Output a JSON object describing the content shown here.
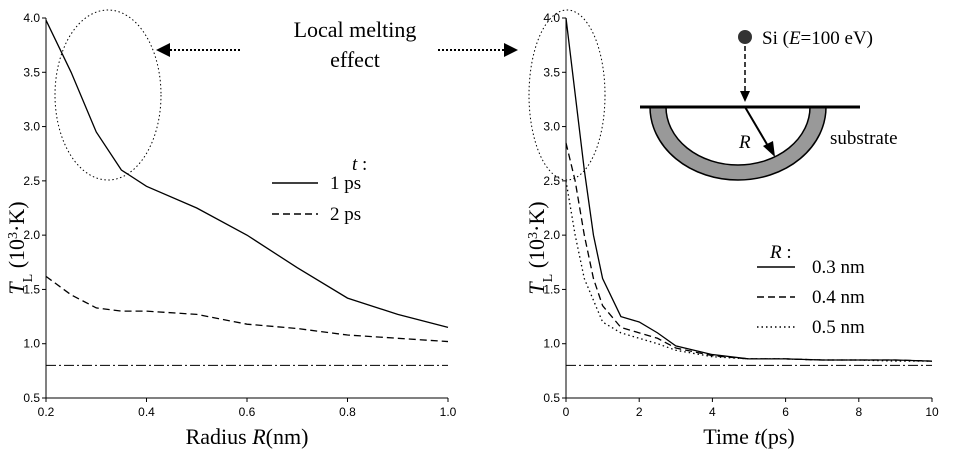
{
  "annotation": {
    "lines": [
      "Local melting",
      "effect"
    ]
  },
  "chart_data": [
    {
      "type": "line",
      "x_label": [
        "Radius ",
        "R",
        "(nm)"
      ],
      "y_label": [
        "T",
        "L",
        " (10",
        "3",
        "·K)"
      ],
      "x": [
        0.2,
        0.25,
        0.3,
        0.35,
        0.4,
        0.5,
        0.6,
        0.7,
        0.8,
        0.9,
        1.0
      ],
      "xlim": [
        0.2,
        1.0
      ],
      "xticks": [
        0.2,
        0.4,
        0.6,
        0.8,
        {
          "value": 1,
          "label": "1.0"
        }
      ],
      "ylim": [
        0.5,
        4
      ],
      "yticks": [
        0.5,
        {
          "value": 1,
          "label": "1.0"
        },
        1.5,
        {
          "value": 2,
          "label": "2.0"
        },
        2.5,
        {
          "value": 3,
          "label": "3.0"
        },
        3.5,
        {
          "value": 4,
          "label": "4.0"
        }
      ],
      "legend_title": [
        "t",
        " :"
      ],
      "series": [
        {
          "name": "1 ps",
          "color": "#000000",
          "dash": "solid",
          "values": [
            3.98,
            3.5,
            2.95,
            2.6,
            2.45,
            2.25,
            2.0,
            1.7,
            1.42,
            1.27,
            1.15
          ]
        },
        {
          "name": "2 ps",
          "color": "#000000",
          "dash": "dashed",
          "values": [
            1.62,
            1.45,
            1.33,
            1.3,
            1.3,
            1.27,
            1.18,
            1.14,
            1.08,
            1.05,
            1.02
          ]
        }
      ],
      "reference_line": 0.8
    },
    {
      "type": "line",
      "x_label": [
        "Time ",
        "t",
        "(ps)"
      ],
      "y_label": [
        "T",
        "L",
        " (10",
        "3",
        "·K)"
      ],
      "x": [
        0,
        0.25,
        0.5,
        0.75,
        1,
        1.5,
        2,
        2.5,
        3,
        4,
        5,
        6,
        7,
        8,
        9,
        10
      ],
      "xlim": [
        0,
        10
      ],
      "xticks": [
        0,
        2,
        4,
        6,
        8,
        10
      ],
      "ylim": [
        0.5,
        4
      ],
      "yticks": [
        0.5,
        {
          "value": 1,
          "label": "1.0"
        },
        1.5,
        {
          "value": 2,
          "label": "2.0"
        },
        2.5,
        {
          "value": 3,
          "label": "3.0"
        },
        3.5,
        {
          "value": 4,
          "label": "4.0"
        }
      ],
      "legend_title": [
        "R",
        " :"
      ],
      "series": [
        {
          "name": "0.3 nm",
          "color": "#000000",
          "dash": "solid",
          "values": [
            4.0,
            3.3,
            2.6,
            2.0,
            1.6,
            1.25,
            1.2,
            1.1,
            0.98,
            0.9,
            0.86,
            0.86,
            0.85,
            0.85,
            0.85,
            0.84
          ]
        },
        {
          "name": "0.4 nm",
          "color": "#000000",
          "dash": "dashed",
          "values": [
            2.85,
            2.5,
            2.0,
            1.6,
            1.35,
            1.15,
            1.1,
            1.05,
            0.96,
            0.89,
            0.86,
            0.86,
            0.85,
            0.85,
            0.85,
            0.84
          ]
        },
        {
          "name": "0.5 nm",
          "color": "#000000",
          "dash": "dotted",
          "values": [
            2.5,
            2.0,
            1.6,
            1.4,
            1.2,
            1.1,
            1.05,
            1.0,
            0.94,
            0.88,
            0.86,
            0.86,
            0.85,
            0.85,
            0.84,
            0.84
          ]
        }
      ],
      "reference_line": 0.8,
      "inset": {
        "particle": [
          "Si (",
          "E",
          "=100 eV)"
        ],
        "radius": "R",
        "substrate": "substrate"
      }
    }
  ]
}
